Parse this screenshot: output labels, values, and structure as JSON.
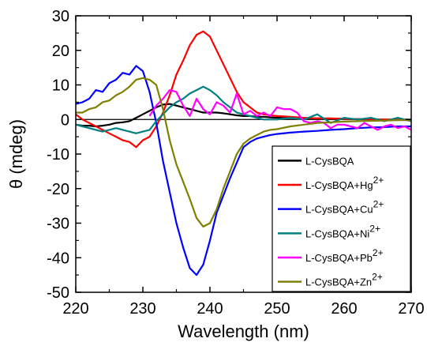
{
  "chart_data": {
    "type": "line",
    "title": "",
    "xlabel": "Wavelength (nm)",
    "ylabel": "θ (mdeg)",
    "xlim": [
      220,
      270
    ],
    "ylim": [
      -50,
      30
    ],
    "x_ticks": [
      220,
      230,
      240,
      250,
      260,
      270
    ],
    "y_ticks": [
      -50,
      -40,
      -30,
      -20,
      -10,
      0,
      10,
      20,
      30
    ],
    "grid": false,
    "legend_position": "bottom-right",
    "baseline": 0,
    "series": [
      {
        "name": "L-CysBQA",
        "sup": "",
        "color": "#000000",
        "x": [
          220,
          221,
          222,
          223,
          224,
          225,
          226,
          227,
          228,
          229,
          230,
          231,
          232,
          233,
          234,
          235,
          236,
          237,
          238,
          239,
          240,
          241,
          242,
          243,
          244,
          245,
          246,
          247,
          248,
          249,
          250,
          252,
          254,
          256,
          258,
          260,
          262,
          264,
          266,
          268,
          270
        ],
        "y": [
          -1.5,
          -1.8,
          -1.8,
          -2.0,
          -1.8,
          -1.5,
          -1.0,
          -0.8,
          -0.5,
          0.5,
          1.5,
          2.5,
          3.5,
          4.3,
          4.5,
          4.0,
          3.5,
          3.0,
          2.5,
          2.0,
          2.0,
          2.0,
          1.8,
          1.5,
          1.2,
          1.0,
          1.0,
          0.8,
          0.8,
          0.6,
          0.5,
          0.5,
          0.3,
          0.3,
          0.2,
          0.2,
          0.1,
          0.1,
          0.0,
          0.0,
          0.0
        ]
      },
      {
        "name": "L-CysBQA+Hg",
        "sup": "2+",
        "color": "#ff0000",
        "x": [
          220,
          221,
          222,
          223,
          224,
          225,
          226,
          227,
          228,
          229,
          230,
          231,
          232,
          233,
          234,
          235,
          236,
          237,
          238,
          239,
          240,
          241,
          242,
          243,
          244,
          245,
          246,
          247,
          248,
          249,
          250,
          252,
          254,
          256,
          258,
          260,
          262,
          264,
          266,
          268,
          270
        ],
        "y": [
          1.5,
          0.0,
          -1.0,
          -2.0,
          -3.0,
          -4.0,
          -5.0,
          -6.0,
          -6.5,
          -8.0,
          -6.0,
          -5.0,
          -2.0,
          2.0,
          7.0,
          13.0,
          17.0,
          21.5,
          24.5,
          25.5,
          24.0,
          20.0,
          16.0,
          12.0,
          8.0,
          5.0,
          3.5,
          2.0,
          1.5,
          1.2,
          1.0,
          0.8,
          0.5,
          0.3,
          0.3,
          0.2,
          0.1,
          0.1,
          0.0,
          0.0,
          -0.2
        ]
      },
      {
        "name": "L-CysBQA+Cu",
        "sup": "2+",
        "color": "#0000ff",
        "x": [
          220,
          221,
          222,
          223,
          224,
          225,
          226,
          227,
          228,
          229,
          230,
          231,
          232,
          233,
          234,
          235,
          236,
          237,
          238,
          239,
          240,
          241,
          242,
          243,
          244,
          245,
          246,
          247,
          248,
          249,
          250,
          252,
          254,
          256,
          258,
          260,
          262,
          264,
          266,
          268,
          270
        ],
        "y": [
          4.5,
          5.0,
          6.0,
          8.5,
          8.0,
          10.5,
          11.5,
          13.5,
          13.0,
          15.5,
          14.0,
          8.0,
          -1.0,
          -12.0,
          -21.0,
          -30.0,
          -37.0,
          -43.0,
          -45.0,
          -42.0,
          -35.0,
          -27.0,
          -22.0,
          -17.0,
          -12.5,
          -8.0,
          -6.5,
          -5.5,
          -5.0,
          -4.5,
          -4.2,
          -3.8,
          -3.5,
          -3.3,
          -3.0,
          -2.8,
          -2.5,
          -2.3,
          -2.2,
          -2.0,
          -2.0
        ]
      },
      {
        "name": "L-CysBQA+Ni",
        "sup": "2+",
        "color": "#008080",
        "x": [
          220,
          221,
          222,
          223,
          224,
          225,
          226,
          227,
          228,
          229,
          230,
          231,
          232,
          233,
          234,
          235,
          236,
          237,
          238,
          239,
          240,
          241,
          242,
          243,
          244,
          245,
          246,
          247,
          248,
          249,
          250,
          252,
          254,
          256,
          258,
          260,
          262,
          264,
          266,
          268,
          270
        ],
        "y": [
          -1.5,
          -2.0,
          -2.5,
          -3.0,
          -3.5,
          -3.0,
          -2.5,
          -3.0,
          -3.5,
          -4.0,
          -3.5,
          -3.0,
          -0.5,
          1.5,
          3.5,
          5.0,
          6.0,
          7.5,
          8.5,
          9.5,
          8.5,
          7.0,
          5.0,
          3.5,
          2.0,
          1.5,
          1.0,
          0.5,
          0.0,
          0.0,
          0.0,
          0.5,
          0.0,
          1.5,
          -1.0,
          0.5,
          0.0,
          0.5,
          -0.5,
          0.5,
          -0.5
        ]
      },
      {
        "name": "L-CysBQA+Pb",
        "sup": "2+",
        "color": "#ff00ff",
        "x": [
          231,
          232,
          233,
          234,
          235,
          236,
          237,
          238,
          239,
          240,
          241,
          242,
          243,
          244,
          245,
          246,
          247,
          248,
          249,
          250,
          251,
          252,
          253,
          254,
          255,
          256,
          257,
          258,
          259,
          260,
          261,
          262,
          263,
          264,
          265,
          266,
          267,
          268,
          269,
          270
        ],
        "y": [
          1.0,
          4.0,
          6.0,
          8.5,
          8.0,
          4.0,
          1.0,
          6.0,
          3.0,
          1.5,
          5.0,
          4.0,
          2.0,
          7.5,
          1.5,
          2.5,
          1.0,
          2.0,
          1.0,
          3.5,
          3.0,
          3.0,
          2.0,
          -0.5,
          -1.0,
          -0.5,
          -1.0,
          -2.5,
          -1.5,
          -1.5,
          -2.0,
          -2.5,
          -1.0,
          -2.0,
          -3.0,
          -2.0,
          -1.5,
          -2.5,
          -2.0,
          -3.0
        ]
      },
      {
        "name": "L-CysBQA+Zn",
        "sup": "2+",
        "color": "#808000",
        "x": [
          220,
          221,
          222,
          223,
          224,
          225,
          226,
          227,
          228,
          229,
          230,
          231,
          232,
          233,
          234,
          235,
          236,
          237,
          238,
          239,
          240,
          241,
          242,
          243,
          244,
          245,
          246,
          247,
          248,
          249,
          250,
          252,
          254,
          256,
          258,
          260,
          262,
          264,
          266,
          268,
          270
        ],
        "y": [
          2.0,
          2.0,
          3.0,
          3.5,
          5.0,
          5.5,
          7.0,
          8.0,
          9.5,
          11.5,
          12.0,
          11.5,
          10.0,
          3.0,
          -6.0,
          -13.0,
          -18.0,
          -23.0,
          -28.5,
          -31.0,
          -30.0,
          -26.0,
          -20.0,
          -15.0,
          -10.0,
          -7.0,
          -5.5,
          -4.5,
          -3.5,
          -3.0,
          -2.8,
          -2.0,
          -1.5,
          -1.0,
          -0.8,
          -0.6,
          -0.5,
          -0.4,
          -0.3,
          -0.2,
          -0.2
        ]
      }
    ]
  }
}
